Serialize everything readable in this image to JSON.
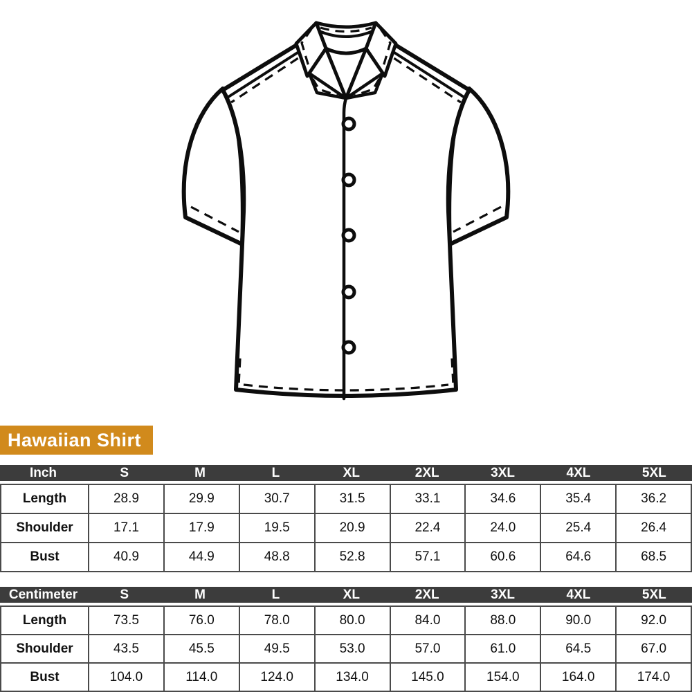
{
  "product": {
    "label": "Hawaiian Shirt"
  },
  "illustration": {
    "name": "hawaiian-shirt-line-art",
    "style": "black outline drawing, camp collar, short sleeves, front placket",
    "button_count": 5
  },
  "colors": {
    "background": "#FFFFFF",
    "accent": "#D18A1C",
    "table_header_bg": "#3C3C3C",
    "table_border": "#4A4A4A",
    "line_art": "#0D0D0D",
    "text": "#111111"
  },
  "size_tables": [
    {
      "unit_label": "Inch",
      "sizes": [
        "S",
        "M",
        "L",
        "XL",
        "2XL",
        "3XL",
        "4XL",
        "5XL"
      ],
      "rows": [
        {
          "label": "Length",
          "values": [
            "28.9",
            "29.9",
            "30.7",
            "31.5",
            "33.1",
            "34.6",
            "35.4",
            "36.2"
          ]
        },
        {
          "label": "Shoulder",
          "values": [
            "17.1",
            "17.9",
            "19.5",
            "20.9",
            "22.4",
            "24.0",
            "25.4",
            "26.4"
          ]
        },
        {
          "label": "Bust",
          "values": [
            "40.9",
            "44.9",
            "48.8",
            "52.8",
            "57.1",
            "60.6",
            "64.6",
            "68.5"
          ]
        }
      ]
    },
    {
      "unit_label": "Centimeter",
      "sizes": [
        "S",
        "M",
        "L",
        "XL",
        "2XL",
        "3XL",
        "4XL",
        "5XL"
      ],
      "rows": [
        {
          "label": "Length",
          "values": [
            "73.5",
            "76.0",
            "78.0",
            "80.0",
            "84.0",
            "88.0",
            "90.0",
            "92.0"
          ]
        },
        {
          "label": "Shoulder",
          "values": [
            "43.5",
            "45.5",
            "49.5",
            "53.0",
            "57.0",
            "61.0",
            "64.5",
            "67.0"
          ]
        },
        {
          "label": "Bust",
          "values": [
            "104.0",
            "114.0",
            "124.0",
            "134.0",
            "145.0",
            "154.0",
            "164.0",
            "174.0"
          ]
        }
      ]
    }
  ]
}
